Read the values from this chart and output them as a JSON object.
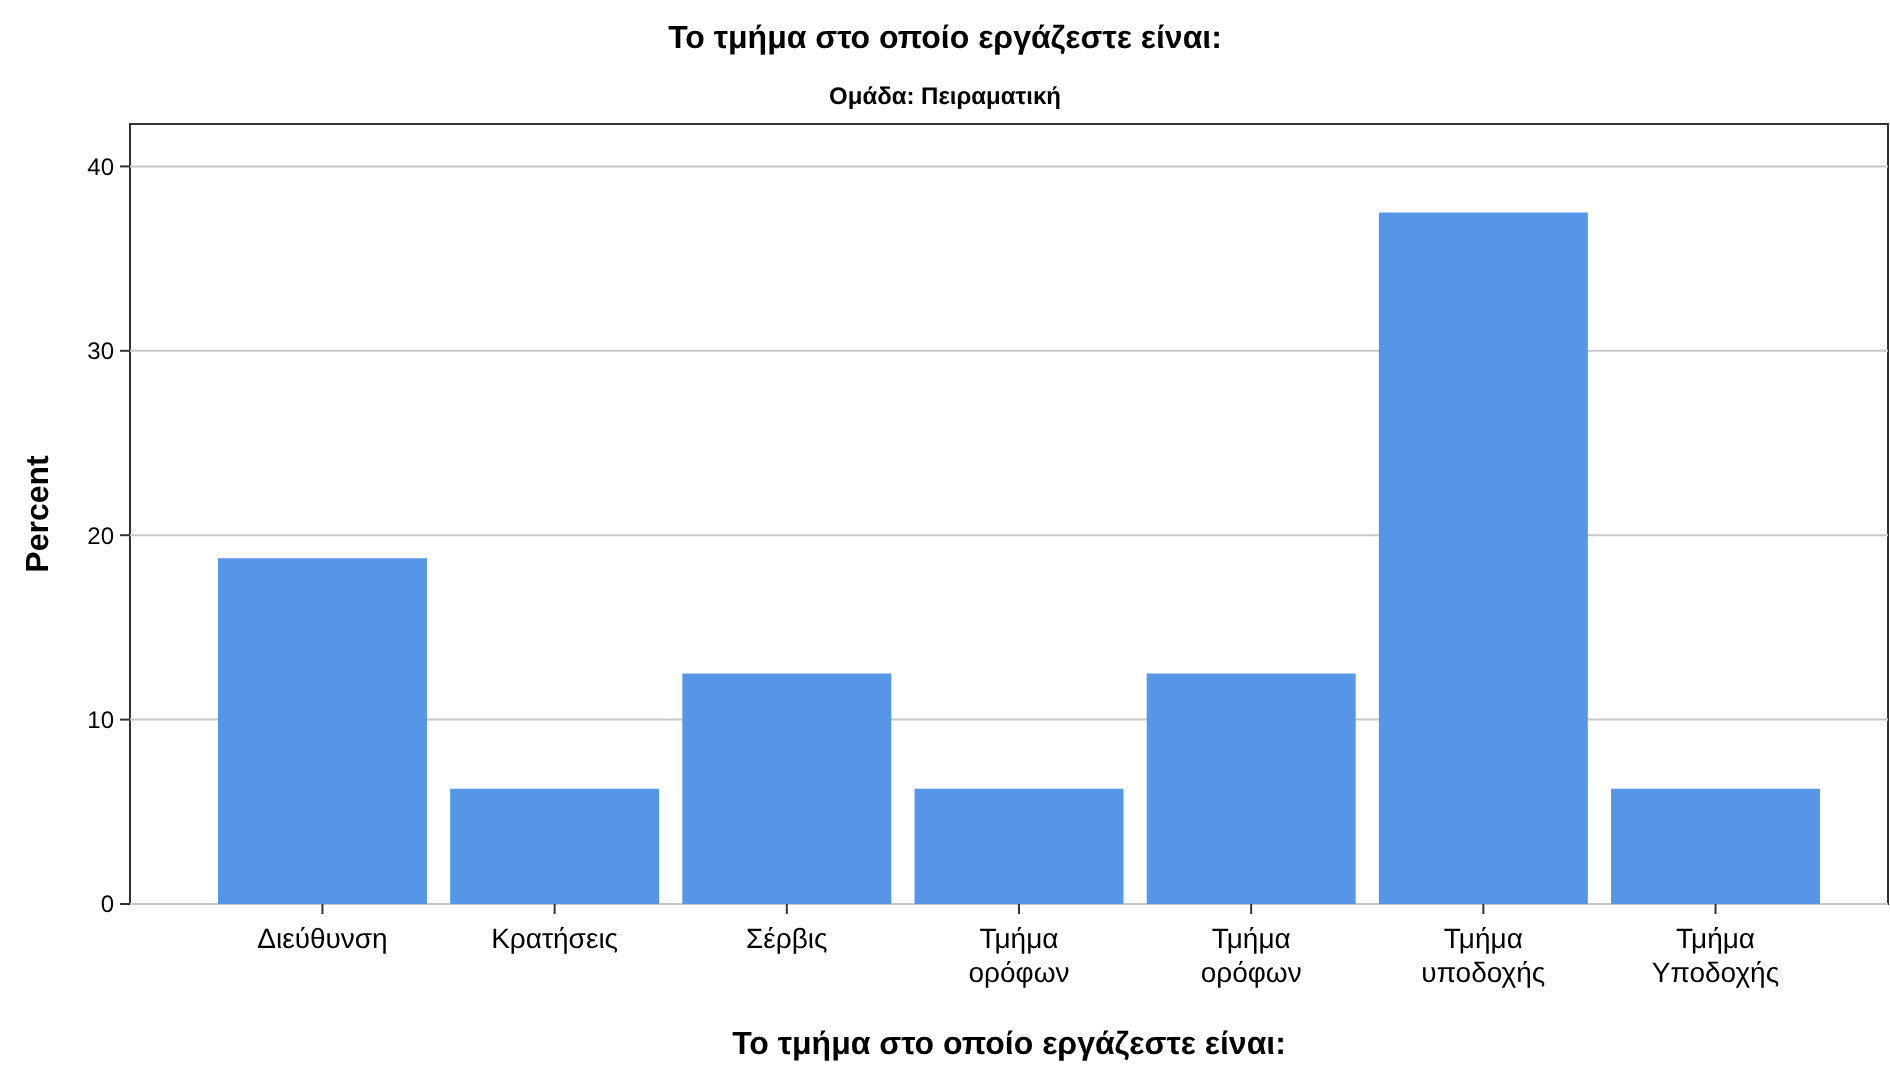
{
  "chart_data": {
    "type": "bar",
    "title": "Το τμήμα στο οποίο εργάζεστε είναι:",
    "subtitle": "Ομάδα: Πειραματική",
    "xlabel": "Το τμήμα στο οποίο εργάζεστε είναι:",
    "ylabel": "Percent",
    "categories": [
      "Διεύθυνση",
      "Κρατήσεις",
      "Σέρβις",
      "Τμήμα ορόφων",
      "Τμήμα ορόφων",
      "Τμήμα υποδοχής",
      "Τμήμα Υποδοχής"
    ],
    "values": [
      18.75,
      6.25,
      12.5,
      6.25,
      12.5,
      37.5,
      6.25
    ],
    "color": "#5596e6",
    "ylim": [
      0,
      42.3
    ],
    "yticks": [
      0,
      10,
      20,
      30,
      40
    ],
    "grid": "y"
  }
}
